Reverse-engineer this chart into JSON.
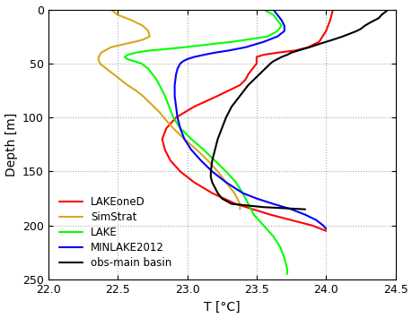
{
  "xlabel": "T [°C]",
  "ylabel": "Depth [m]",
  "xlim": [
    22,
    24.5
  ],
  "ylim": [
    250,
    0
  ],
  "xticks": [
    22,
    22.5,
    23,
    23.5,
    24,
    24.5
  ],
  "yticks": [
    0,
    50,
    100,
    150,
    200,
    250
  ],
  "background_color": "#ffffff",
  "series": {
    "LAKEoneD": {
      "color": "red",
      "depth": [
        0,
        5,
        10,
        20,
        30,
        35,
        38,
        40,
        42,
        44,
        46,
        48,
        50,
        55,
        60,
        65,
        70,
        75,
        80,
        90,
        100,
        110,
        120,
        130,
        140,
        150,
        160,
        170,
        180,
        190,
        195,
        200,
        205
      ],
      "temp": [
        24.05,
        24.04,
        24.03,
        24.0,
        23.95,
        23.87,
        23.78,
        23.65,
        23.55,
        23.5,
        23.5,
        23.5,
        23.5,
        23.47,
        23.44,
        23.42,
        23.38,
        23.3,
        23.22,
        23.05,
        22.92,
        22.85,
        22.82,
        22.84,
        22.88,
        22.95,
        23.05,
        23.18,
        23.35,
        23.6,
        23.75,
        23.9,
        24.0
      ]
    },
    "SimStrat": {
      "color": "#DAA520",
      "depth": [
        0,
        5,
        10,
        15,
        20,
        25,
        28,
        30,
        32,
        35,
        40,
        45,
        50,
        55,
        60,
        65,
        70,
        75,
        80,
        85,
        90,
        95,
        100,
        110,
        120,
        130,
        140,
        150,
        160,
        170,
        175,
        180,
        185
      ],
      "temp": [
        22.45,
        22.5,
        22.6,
        22.68,
        22.72,
        22.73,
        22.68,
        22.62,
        22.55,
        22.45,
        22.38,
        22.36,
        22.37,
        22.42,
        22.47,
        22.52,
        22.57,
        22.63,
        22.68,
        22.72,
        22.76,
        22.8,
        22.83,
        22.9,
        22.98,
        23.07,
        23.15,
        23.22,
        23.28,
        23.34,
        23.36,
        23.38,
        23.38
      ]
    },
    "LAKE": {
      "color": "lime",
      "depth": [
        0,
        5,
        10,
        15,
        20,
        25,
        27,
        30,
        32,
        35,
        37,
        38,
        40,
        42,
        44,
        46,
        48,
        50,
        55,
        60,
        65,
        70,
        80,
        90,
        100,
        110,
        120,
        130,
        140,
        150,
        160,
        170,
        180,
        190,
        200,
        210,
        220,
        230,
        240,
        245
      ],
      "temp": [
        23.55,
        23.62,
        23.65,
        23.68,
        23.65,
        23.58,
        23.48,
        23.32,
        23.18,
        22.98,
        22.82,
        22.73,
        22.63,
        22.57,
        22.55,
        22.57,
        22.62,
        22.67,
        22.72,
        22.75,
        22.78,
        22.8,
        22.84,
        22.87,
        22.9,
        22.95,
        23.03,
        23.12,
        23.2,
        23.28,
        23.35,
        23.4,
        23.44,
        23.48,
        23.55,
        23.62,
        23.67,
        23.7,
        23.72,
        23.72
      ]
    },
    "MINLAKE2012": {
      "color": "blue",
      "depth": [
        0,
        5,
        10,
        15,
        20,
        25,
        30,
        35,
        38,
        40,
        42,
        44,
        46,
        48,
        50,
        55,
        60,
        70,
        80,
        90,
        100,
        110,
        120,
        130,
        140,
        150,
        160,
        170,
        175,
        180,
        185,
        190,
        195,
        200,
        203
      ],
      "temp": [
        23.62,
        23.65,
        23.68,
        23.7,
        23.7,
        23.65,
        23.55,
        23.42,
        23.3,
        23.2,
        23.12,
        23.05,
        23.0,
        22.97,
        22.95,
        22.93,
        22.92,
        22.91,
        22.91,
        22.92,
        22.93,
        22.95,
        22.98,
        23.03,
        23.1,
        23.18,
        23.28,
        23.4,
        23.5,
        23.62,
        23.75,
        23.85,
        23.93,
        23.98,
        24.0
      ]
    },
    "obs-main basin": {
      "color": "black",
      "depth": [
        0,
        3,
        5,
        8,
        10,
        12,
        15,
        18,
        20,
        22,
        25,
        28,
        30,
        32,
        35,
        38,
        40,
        42,
        44,
        46,
        48,
        50,
        55,
        60,
        65,
        70,
        75,
        80,
        90,
        100,
        110,
        120,
        130,
        140,
        150,
        155,
        160,
        165,
        170,
        175,
        180,
        183,
        185
      ],
      "temp": [
        24.45,
        24.42,
        24.4,
        24.38,
        24.35,
        24.32,
        24.28,
        24.25,
        24.22,
        24.18,
        24.12,
        24.05,
        24.0,
        23.95,
        23.88,
        23.8,
        23.75,
        23.72,
        23.68,
        23.65,
        23.62,
        23.6,
        23.56,
        23.52,
        23.48,
        23.44,
        23.41,
        23.38,
        23.32,
        23.28,
        23.25,
        23.22,
        23.2,
        23.18,
        23.17,
        23.17,
        23.18,
        23.2,
        23.22,
        23.25,
        23.32,
        23.55,
        23.85
      ]
    }
  },
  "legend_order": [
    "LAKEoneD",
    "SimStrat",
    "LAKE",
    "MINLAKE2012",
    "obs-main basin"
  ],
  "linewidth": 1.5
}
